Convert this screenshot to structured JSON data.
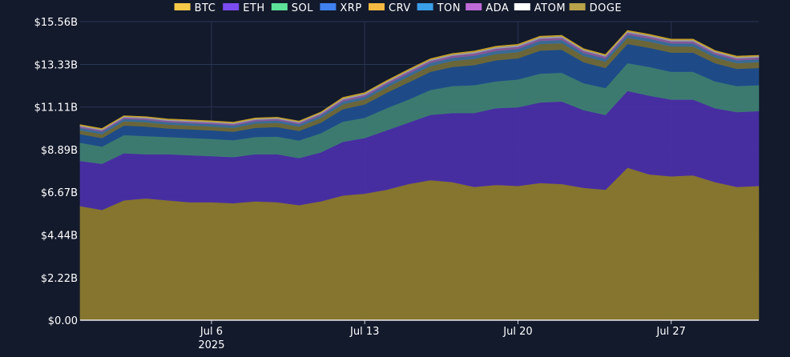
{
  "chart_data": {
    "type": "area",
    "stacked": true,
    "title": "",
    "xlabel": "",
    "ylabel": "",
    "ylim": [
      0,
      15.56
    ],
    "y_unit": "B USD",
    "yticks": [
      {
        "value": 0,
        "label": "$0.00"
      },
      {
        "value": 2.22,
        "label": "$2.22B"
      },
      {
        "value": 4.44,
        "label": "$4.44B"
      },
      {
        "value": 6.67,
        "label": "$6.67B"
      },
      {
        "value": 8.89,
        "label": "$8.89B"
      },
      {
        "value": 11.11,
        "label": "$11.11B"
      },
      {
        "value": 13.33,
        "label": "$13.33B"
      },
      {
        "value": 15.56,
        "label": "$15.56B"
      }
    ],
    "xlim": [
      "2025-06-30",
      "2025-07-31"
    ],
    "xticks": [
      {
        "date": "2025-07-06",
        "label": "Jul 6",
        "sublabel": "2025"
      },
      {
        "date": "2025-07-13",
        "label": "Jul 13",
        "sublabel": ""
      },
      {
        "date": "2025-07-20",
        "label": "Jul 20",
        "sublabel": ""
      },
      {
        "date": "2025-07-27",
        "label": "Jul 27",
        "sublabel": ""
      }
    ],
    "grid": true,
    "legend_position": "top",
    "x": [
      "2025-06-30",
      "2025-07-01",
      "2025-07-02",
      "2025-07-03",
      "2025-07-04",
      "2025-07-05",
      "2025-07-06",
      "2025-07-07",
      "2025-07-08",
      "2025-07-09",
      "2025-07-10",
      "2025-07-11",
      "2025-07-12",
      "2025-07-13",
      "2025-07-14",
      "2025-07-15",
      "2025-07-16",
      "2025-07-17",
      "2025-07-18",
      "2025-07-19",
      "2025-07-20",
      "2025-07-21",
      "2025-07-22",
      "2025-07-23",
      "2025-07-24",
      "2025-07-25",
      "2025-07-26",
      "2025-07-27",
      "2025-07-28",
      "2025-07-29",
      "2025-07-30",
      "2025-07-31"
    ],
    "series": [
      {
        "name": "DOGE",
        "color": "#8b7a2e",
        "values": [
          5.95,
          5.75,
          6.25,
          6.35,
          6.25,
          6.15,
          6.15,
          6.1,
          6.2,
          6.15,
          6.0,
          6.2,
          6.5,
          6.6,
          6.8,
          7.1,
          7.3,
          7.2,
          6.95,
          7.05,
          7.0,
          7.15,
          7.1,
          6.9,
          6.8,
          7.95,
          7.6,
          7.5,
          7.55,
          7.2,
          6.95,
          7.0
        ]
      },
      {
        "name": "ETH",
        "color": "#4a2fa6",
        "values": [
          2.35,
          2.4,
          2.45,
          2.3,
          2.4,
          2.45,
          2.4,
          2.4,
          2.45,
          2.5,
          2.45,
          2.55,
          2.8,
          2.9,
          3.1,
          3.2,
          3.4,
          3.6,
          3.85,
          4.0,
          4.1,
          4.2,
          4.3,
          4.05,
          3.9,
          4.0,
          4.1,
          4.0,
          3.95,
          3.85,
          3.9,
          3.9
        ]
      },
      {
        "name": "SOL",
        "color": "#3e7f74",
        "values": [
          0.95,
          0.9,
          0.95,
          0.95,
          0.9,
          0.9,
          0.9,
          0.88,
          0.9,
          0.92,
          0.92,
          1.0,
          1.05,
          1.05,
          1.15,
          1.2,
          1.3,
          1.4,
          1.45,
          1.4,
          1.45,
          1.5,
          1.5,
          1.4,
          1.4,
          1.45,
          1.5,
          1.45,
          1.45,
          1.4,
          1.35,
          1.35
        ]
      },
      {
        "name": "XRP",
        "color": "#1f4e8c",
        "values": [
          0.45,
          0.45,
          0.5,
          0.5,
          0.45,
          0.45,
          0.45,
          0.45,
          0.48,
          0.5,
          0.5,
          0.55,
          0.65,
          0.7,
          0.8,
          0.9,
          0.95,
          1.0,
          1.05,
          1.1,
          1.1,
          1.2,
          1.2,
          1.1,
          1.05,
          1.0,
          1.0,
          1.0,
          1.0,
          0.95,
          0.9,
          0.9
        ]
      },
      {
        "name": "CRV",
        "color": "#6f6a3a",
        "values": [
          0.2,
          0.2,
          0.22,
          0.22,
          0.2,
          0.2,
          0.2,
          0.2,
          0.22,
          0.22,
          0.22,
          0.24,
          0.26,
          0.26,
          0.28,
          0.3,
          0.3,
          0.32,
          0.32,
          0.32,
          0.32,
          0.34,
          0.34,
          0.32,
          0.32,
          0.32,
          0.32,
          0.32,
          0.32,
          0.3,
          0.3,
          0.3
        ]
      },
      {
        "name": "TON",
        "color": "#3b6f9a",
        "values": [
          0.12,
          0.12,
          0.12,
          0.12,
          0.12,
          0.12,
          0.12,
          0.12,
          0.12,
          0.12,
          0.12,
          0.13,
          0.14,
          0.14,
          0.15,
          0.15,
          0.16,
          0.16,
          0.17,
          0.17,
          0.17,
          0.17,
          0.17,
          0.16,
          0.16,
          0.16,
          0.16,
          0.16,
          0.16,
          0.15,
          0.15,
          0.15
        ]
      },
      {
        "name": "ADA",
        "color": "#8a5a9c",
        "values": [
          0.08,
          0.08,
          0.08,
          0.08,
          0.08,
          0.08,
          0.08,
          0.08,
          0.08,
          0.08,
          0.08,
          0.09,
          0.1,
          0.1,
          0.1,
          0.11,
          0.11,
          0.11,
          0.12,
          0.12,
          0.12,
          0.12,
          0.12,
          0.11,
          0.11,
          0.11,
          0.11,
          0.11,
          0.11,
          0.1,
          0.1,
          0.1
        ]
      },
      {
        "name": "ATOM",
        "color": "#9aa1b0",
        "values": [
          0.05,
          0.05,
          0.05,
          0.05,
          0.05,
          0.05,
          0.05,
          0.05,
          0.05,
          0.05,
          0.05,
          0.05,
          0.06,
          0.06,
          0.06,
          0.06,
          0.06,
          0.06,
          0.07,
          0.07,
          0.07,
          0.07,
          0.07,
          0.06,
          0.06,
          0.06,
          0.06,
          0.06,
          0.06,
          0.06,
          0.06,
          0.06
        ]
      },
      {
        "name": "BTC",
        "color": "#c9a227",
        "values": [
          0.04,
          0.04,
          0.04,
          0.04,
          0.04,
          0.04,
          0.04,
          0.04,
          0.04,
          0.04,
          0.04,
          0.04,
          0.05,
          0.05,
          0.05,
          0.05,
          0.05,
          0.05,
          0.05,
          0.05,
          0.05,
          0.05,
          0.05,
          0.05,
          0.05,
          0.05,
          0.05,
          0.05,
          0.05,
          0.05,
          0.05,
          0.05
        ]
      }
    ],
    "legend": [
      {
        "name": "BTC",
        "color": "#f7c948"
      },
      {
        "name": "ETH",
        "color": "#7b4cf0"
      },
      {
        "name": "SOL",
        "color": "#5ee29a"
      },
      {
        "name": "XRP",
        "color": "#3f82f0"
      },
      {
        "name": "CRV",
        "color": "#f5b942"
      },
      {
        "name": "TON",
        "color": "#3b9ee8"
      },
      {
        "name": "ADA",
        "color": "#c06ad8"
      },
      {
        "name": "ATOM",
        "color": "#ffffff"
      },
      {
        "name": "DOGE",
        "color": "#b8a24a"
      }
    ]
  }
}
